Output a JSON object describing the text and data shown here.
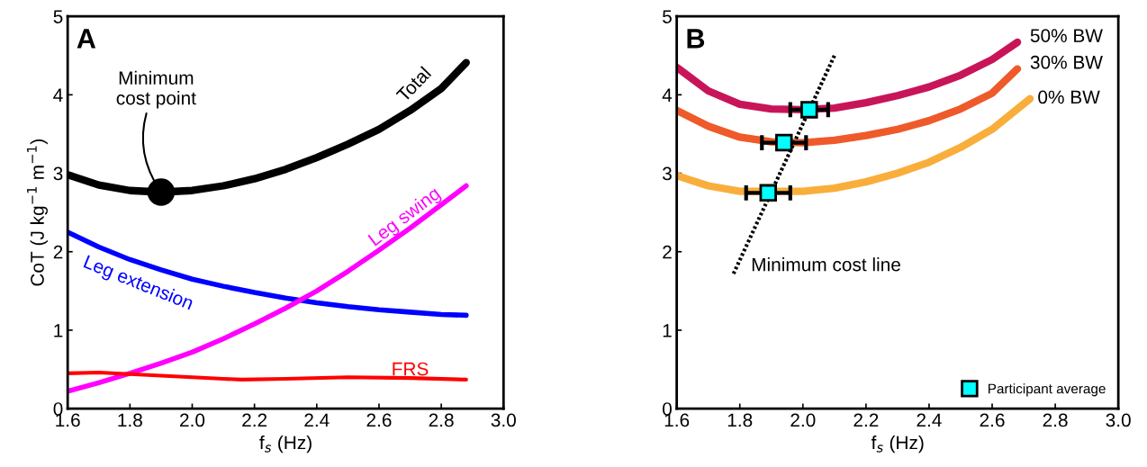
{
  "chart_data": [
    {
      "type": "line",
      "xlabel": "$_{}$f$_{s}$ (Hz)",
      "ylabel": "CoT (J kg$^{−1}$ m$^{−1}$)",
      "xlim": [
        1.6,
        3.0
      ],
      "ylim": [
        0,
        5
      ],
      "xticks": [
        {
          "value": 1.6,
          "label": "1.6"
        },
        {
          "value": 1.8,
          "label": "1.8"
        },
        {
          "value": 2.0,
          "label": "2.0"
        },
        {
          "value": 2.2,
          "label": "2.2"
        },
        {
          "value": 2.4,
          "label": "2.4"
        },
        {
          "value": 2.6,
          "label": "2.6"
        },
        {
          "value": 2.8,
          "label": "2.8"
        },
        {
          "value": 3.0,
          "label": "3.0"
        }
      ],
      "yticks": [
        0,
        1,
        2,
        3,
        4,
        5
      ],
      "grid": false,
      "legend": false,
      "annotations": [
        "A",
        {
          "text": "Minimum\ncost point",
          "x": 1.9,
          "y": 2.76
        }
      ],
      "series": [
        {
          "name": "Total",
          "color": "#000000",
          "x": [
            1.6,
            1.7,
            1.8,
            1.9,
            2.0,
            2.1,
            2.2,
            2.3,
            2.4,
            2.5,
            2.6,
            2.7,
            2.8,
            2.88
          ],
          "values": [
            2.98,
            2.85,
            2.78,
            2.76,
            2.78,
            2.84,
            2.93,
            3.05,
            3.2,
            3.37,
            3.56,
            3.8,
            4.08,
            4.41
          ]
        },
        {
          "name": "Leg extension",
          "color": "#0000ff",
          "x": [
            1.6,
            1.7,
            1.8,
            1.9,
            2.0,
            2.1,
            2.2,
            2.3,
            2.4,
            2.5,
            2.6,
            2.7,
            2.8,
            2.88
          ],
          "values": [
            2.25,
            2.06,
            1.9,
            1.77,
            1.65,
            1.56,
            1.48,
            1.41,
            1.35,
            1.3,
            1.26,
            1.23,
            1.2,
            1.19
          ]
        },
        {
          "name": "Leg swing",
          "color": "#ff00ff",
          "x": [
            1.6,
            1.7,
            1.8,
            1.9,
            2.0,
            2.1,
            2.2,
            2.3,
            2.4,
            2.5,
            2.6,
            2.7,
            2.8,
            2.88
          ],
          "values": [
            0.22,
            0.33,
            0.45,
            0.58,
            0.72,
            0.89,
            1.08,
            1.28,
            1.5,
            1.75,
            2.02,
            2.3,
            2.6,
            2.84
          ]
        },
        {
          "name": "FRS",
          "color": "#ff0000",
          "x": [
            1.6,
            1.7,
            1.8,
            1.9,
            2.0,
            2.1,
            2.16,
            2.3,
            2.5,
            2.7,
            2.88
          ],
          "values": [
            0.45,
            0.46,
            0.44,
            0.42,
            0.4,
            0.38,
            0.37,
            0.38,
            0.4,
            0.39,
            0.37
          ]
        },
        {
          "type": "scatter",
          "marker": "circle",
          "color": "#000000",
          "x": [
            1.9
          ],
          "values": [
            2.76
          ]
        }
      ]
    },
    {
      "type": "line",
      "xlabel": "$_{}$f$_{s}$ (Hz)",
      "xlim": [
        1.6,
        3.0
      ],
      "ylim": [
        0,
        5
      ],
      "xticks": [
        {
          "value": 1.6,
          "label": "1.6"
        },
        {
          "value": 1.8,
          "label": "1.8"
        },
        {
          "value": 2.0,
          "label": "2.0"
        },
        {
          "value": 2.2,
          "label": "2.2"
        },
        {
          "value": 2.4,
          "label": "2.4"
        },
        {
          "value": 2.6,
          "label": "2.6"
        },
        {
          "value": 2.8,
          "label": "2.8"
        },
        {
          "value": 3.0,
          "label": "3.0"
        }
      ],
      "yticks": [
        0,
        1,
        2,
        3,
        4,
        5
      ],
      "grid": false,
      "legend": "bottom right",
      "annotations": [
        "B"
      ],
      "series": [
        {
          "name": "50% BW",
          "color": "#c8155a",
          "x": [
            1.6,
            1.7,
            1.8,
            1.9,
            2.0,
            2.1,
            2.2,
            2.3,
            2.4,
            2.5,
            2.6,
            2.68
          ],
          "values": [
            4.35,
            4.05,
            3.88,
            3.82,
            3.81,
            3.83,
            3.9,
            3.99,
            4.1,
            4.25,
            4.45,
            4.67
          ]
        },
        {
          "name": "30% BW",
          "color": "#ee5a2a",
          "x": [
            1.6,
            1.7,
            1.8,
            1.9,
            2.0,
            2.1,
            2.2,
            2.3,
            2.4,
            2.5,
            2.6,
            2.68
          ],
          "values": [
            3.8,
            3.6,
            3.46,
            3.4,
            3.39,
            3.42,
            3.48,
            3.56,
            3.67,
            3.82,
            4.02,
            4.33
          ]
        },
        {
          "name": "0% BW",
          "color": "#f9ae3c",
          "x": [
            1.6,
            1.7,
            1.8,
            2.0,
            2.1,
            2.2,
            2.3,
            2.4,
            2.5,
            2.6,
            2.72
          ],
          "values": [
            2.97,
            2.84,
            2.77,
            2.77,
            2.81,
            2.89,
            3.0,
            3.14,
            3.33,
            3.56,
            3.95
          ]
        },
        {
          "name": "Minimum cost line",
          "color": "#000000",
          "line_style": "dotted",
          "x": [
            1.78,
            2.1
          ],
          "values": [
            1.72,
            4.5
          ]
        },
        {
          "name": "Participant average",
          "type": "scatter",
          "marker": "square",
          "color": "#00ffff",
          "x": [
            1.89,
            1.94,
            2.02
          ],
          "values": [
            2.75,
            3.39,
            3.81
          ],
          "xerrors": [
            0.07,
            0.07,
            0.06
          ]
        }
      ]
    }
  ]
}
